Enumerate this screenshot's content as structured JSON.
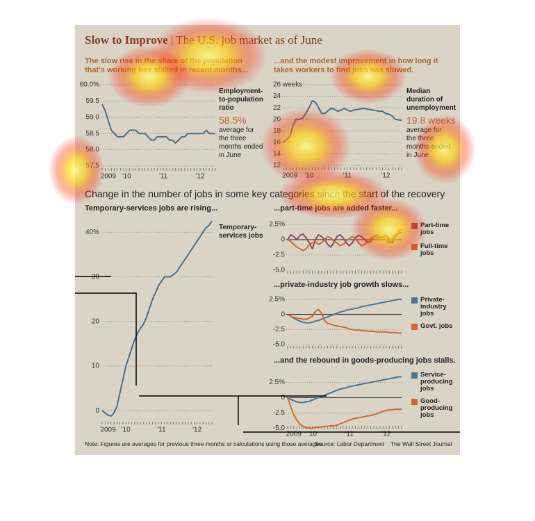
{
  "header": {
    "title": "Slow to Improve",
    "subtitle": "The U.S. job market as of June",
    "section": "Change in the number of jobs in some key categories since the start of the recovery"
  },
  "footer": {
    "note": "Note: Figures are averages for previous three months or calculations using those averages",
    "source": "Source: Labor Department",
    "credit": "The Wall Street Journal"
  },
  "chart_data": [
    {
      "type": "line",
      "subtitle": "The slow rise in the share of the population that's working has stalled in recent months...",
      "categories": [
        null,
        null,
        "2009",
        null,
        null,
        null,
        null,
        null,
        "'10",
        null,
        null,
        null,
        null,
        null,
        null,
        null,
        null,
        null,
        null,
        null,
        "'11",
        null,
        null,
        null,
        null,
        null,
        null,
        null,
        null,
        null,
        null,
        null,
        "'12",
        null,
        null,
        null,
        null,
        null
      ],
      "values": [
        59.4,
        59.2,
        58.9,
        58.6,
        58.5,
        58.4,
        58.4,
        58.4,
        58.5,
        58.6,
        58.6,
        58.6,
        58.5,
        58.5,
        58.5,
        58.4,
        58.3,
        58.3,
        58.4,
        58.4,
        58.4,
        58.4,
        58.3,
        58.3,
        58.2,
        58.3,
        58.4,
        58.4,
        58.5,
        58.5,
        58.5,
        58.5,
        58.5,
        58.5,
        58.6,
        58.5,
        58.5,
        58.5
      ],
      "color": "#4a6f8c",
      "ylim": [
        57.5,
        60
      ],
      "yticks": [
        57.5,
        {
          "value": 58,
          "label": "58.0"
        },
        58.5,
        {
          "value": 59,
          "label": "59.0"
        },
        59.5,
        {
          "value": 60,
          "label": "60.0%"
        }
      ],
      "grid": true,
      "annotation": {
        "label": "Employment-to-population ratio",
        "value_text": "58.5%",
        "note": "average for the three months ended in June"
      }
    },
    {
      "type": "line",
      "subtitle": "...and the modest improvement in how long it takes workers to find jobs has slowed.",
      "categories": [
        null,
        null,
        "2009",
        null,
        null,
        null,
        null,
        null,
        "'10",
        null,
        null,
        null,
        null,
        null,
        null,
        null,
        null,
        null,
        null,
        null,
        "'11",
        null,
        null,
        null,
        null,
        null,
        null,
        null,
        null,
        null,
        null,
        null,
        "'12",
        null,
        null,
        null,
        null,
        null
      ],
      "values": [
        16,
        16.5,
        17,
        19,
        20,
        20,
        20.2,
        21,
        22,
        23.2,
        23,
        22,
        21,
        21,
        21.5,
        21.9,
        21.7,
        21.4,
        21.6,
        21.9,
        21.6,
        21.4,
        21.6,
        21.7,
        21.8,
        21.9,
        21.8,
        21.7,
        21.6,
        21.5,
        21.4,
        21.4,
        21,
        20.9,
        20.6,
        20,
        19.9,
        19.8
      ],
      "color": "#4a6f8c",
      "ylim": [
        12,
        26
      ],
      "yticks": [
        12,
        14,
        16,
        18,
        20,
        22,
        24,
        {
          "value": 26,
          "label": "26 weeks"
        }
      ],
      "grid": true,
      "annotation": {
        "label": "Median duration of unemployment",
        "value_text": "19.8 weeks",
        "note": "average for the three months ended in June"
      }
    },
    {
      "type": "line",
      "subtitle": "Temporary-services jobs are rising...",
      "categories": [
        null,
        null,
        "2009",
        null,
        null,
        null,
        null,
        null,
        "'10",
        null,
        null,
        null,
        null,
        null,
        null,
        null,
        null,
        null,
        null,
        null,
        "'11",
        null,
        null,
        null,
        null,
        null,
        null,
        null,
        null,
        null,
        null,
        null,
        "'12",
        null,
        null,
        null,
        null,
        null
      ],
      "values": [
        0,
        -0.5,
        -1,
        -1.2,
        -0.5,
        1,
        4,
        7,
        10,
        12,
        14,
        16,
        17.5,
        18.5,
        19.5,
        21,
        23,
        25,
        26.5,
        28,
        29,
        30,
        30,
        30,
        30.5,
        31,
        32,
        33,
        34,
        35,
        36,
        37,
        38,
        39,
        40,
        41,
        41.5,
        42.5
      ],
      "color": "#4a6f8c",
      "ylim": [
        -2,
        43
      ],
      "yticks": [
        0,
        10,
        20,
        30,
        {
          "value": 40,
          "label": "40%"
        }
      ],
      "grid": true,
      "annotation": {
        "label": "Temporary-services jobs"
      }
    },
    {
      "type": "line",
      "subtitle": "...part-time jobs are added faster...",
      "series": [
        {
          "name": "Part-time jobs",
          "color": "#8a4a5c",
          "values": [
            0,
            0.8,
            0.5,
            0,
            0.7,
            0.9,
            0.3,
            -0.5,
            -1.5,
            0,
            0.8,
            0.5,
            0,
            -0.8,
            -1.2,
            -0.5,
            0.5,
            0.8,
            0.3,
            -0.5,
            -1,
            -0.5,
            0.3,
            0.7,
            0.5,
            0,
            -0.5,
            -0.3,
            0.5,
            0.8,
            0.3,
            0.5,
            0.7,
            0,
            -0.5,
            0.5,
            1,
            1.2
          ]
        },
        {
          "name": "Full-time jobs",
          "color": "#d2692a",
          "values": [
            0,
            -0.3,
            -0.8,
            -1.2,
            -1.5,
            -1.8,
            -1.5,
            -0.8,
            -0.5,
            -0.3,
            -0.8,
            -0.5,
            0,
            0.5,
            0.3,
            -0.3,
            -0.5,
            -1,
            -0.8,
            -0.3,
            0.2,
            0.5,
            0.3,
            -0.5,
            -1,
            -0.8,
            -0.3,
            0.3,
            0.5,
            0.3,
            0.5,
            0.3,
            0,
            -0.5,
            0.3,
            0.8,
            1.5,
            1.6
          ]
        }
      ],
      "ylim": [
        -5.5,
        3
      ],
      "yticks": [
        {
          "value": 2.5,
          "label": "2.5%"
        },
        0,
        -2.5,
        {
          "value": -5,
          "label": "-5.0"
        }
      ],
      "grid": true
    },
    {
      "type": "line",
      "subtitle": "...private-industry job growth slows...",
      "series": [
        {
          "name": "Private-industry jobs",
          "color": "#4a7696",
          "values": [
            0,
            -0.3,
            -0.6,
            -0.9,
            -1.1,
            -1.3,
            -1.4,
            -1.4,
            -1.3,
            -1.1,
            -1,
            -0.8,
            -0.6,
            -0.4,
            -0.2,
            0,
            0.2,
            0.4,
            0.5,
            0.7,
            0.8,
            0.9,
            1,
            1.1,
            1.3,
            1.4,
            1.5,
            1.6,
            1.7,
            1.8,
            1.9,
            2,
            2.1,
            2.2,
            2.3,
            2.4,
            2.5,
            2.5
          ]
        },
        {
          "name": "Govt. jobs",
          "color": "#d2692a",
          "values": [
            0,
            -0.3,
            -0.5,
            -0.6,
            -0.7,
            -0.8,
            -0.8,
            -0.6,
            -0.3,
            0.5,
            0.8,
            0.2,
            -1,
            -1.5,
            -1.6,
            -1.8,
            -1.9,
            -2,
            -2.1,
            -2.2,
            -2.4,
            -2.5,
            -2.6,
            -2.6,
            -2.7,
            -2.7,
            -2.8,
            -2.8,
            -2.8,
            -2.9,
            -2.9,
            -2.9,
            -2.9,
            -3,
            -3,
            -3,
            -3.1,
            -3.1
          ]
        }
      ],
      "ylim": [
        -5.5,
        3
      ],
      "yticks": [
        {
          "value": 2.5,
          "label": "2.5%"
        },
        0,
        -2.5,
        {
          "value": -5,
          "label": "-5.0"
        }
      ],
      "grid": true
    },
    {
      "type": "line",
      "subtitle": "...and the rebound in goods-producing jobs stalls.",
      "categories": [
        null,
        null,
        "2009",
        null,
        null,
        null,
        null,
        null,
        "'10",
        null,
        null,
        null,
        null,
        null,
        null,
        null,
        null,
        null,
        null,
        null,
        "'11",
        null,
        null,
        null,
        null,
        null,
        null,
        null,
        null,
        null,
        null,
        null,
        "'12",
        null,
        null,
        null,
        null,
        null
      ],
      "series": [
        {
          "name": "Service-producing jobs",
          "color": "#4a7696",
          "values": [
            0,
            -0.3,
            -0.5,
            -0.7,
            -0.8,
            -0.8,
            -0.7,
            -0.6,
            -0.4,
            -0.2,
            0,
            0.2,
            0.4,
            0.6,
            0.8,
            1,
            1.2,
            1.4,
            1.5,
            1.6,
            1.8,
            1.9,
            2,
            2.1,
            2.2,
            2.3,
            2.4,
            2.5,
            2.6,
            2.7,
            2.8,
            2.9,
            3,
            3.1,
            3.2,
            3.3,
            3.4,
            3.4
          ]
        },
        {
          "name": "Good-producing jobs",
          "color": "#d2692a",
          "values": [
            0,
            -1.5,
            -2.8,
            -3.7,
            -4.3,
            -4.7,
            -4.9,
            -5,
            -5,
            -4.9,
            -4.8,
            -4.8,
            -4.7,
            -4.7,
            -4.6,
            -4.6,
            -4.5,
            -4.3,
            -4.1,
            -3.9,
            -3.7,
            -3.5,
            -3.4,
            -3.3,
            -3.2,
            -3.1,
            -3,
            -2.9,
            -2.8,
            -2.6,
            -2.4,
            -2.2,
            -2.1,
            -2,
            -2,
            -1.9,
            -1.9,
            -1.9
          ]
        }
      ],
      "ylim": [
        -5.5,
        3.5
      ],
      "yticks": [
        {
          "value": 2.5,
          "label": "2.5%"
        },
        0,
        -2.5,
        {
          "value": -5,
          "label": "-5.0"
        }
      ],
      "grid": true
    }
  ]
}
